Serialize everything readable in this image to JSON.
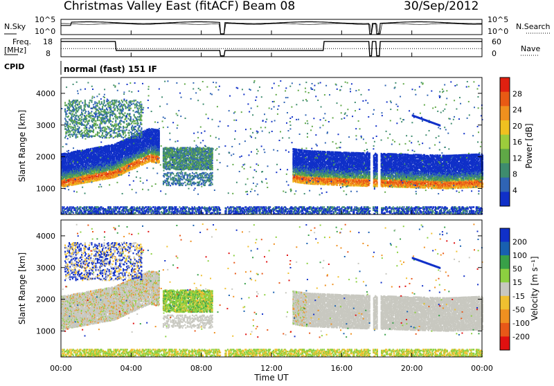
{
  "header": {
    "title": "Christmas Valley East (fitACF)",
    "beam": "Beam 08",
    "date": "30/Sep/2012"
  },
  "panels": {
    "nsky": {
      "label": "N.Sky",
      "top_tick": "10^5",
      "bottom_tick": "10^0",
      "right_label": "N.Search",
      "right_top_tick": "10^5",
      "right_bottom_tick": "10^0"
    },
    "freq": {
      "label_line1": "Freq.",
      "label_line2": "[MHz]",
      "top_tick": "18",
      "bottom_tick": "8",
      "right_label": "Nave",
      "right_top_tick": "60",
      "right_bottom_tick": "0"
    },
    "cpid": {
      "label": "CPID",
      "value": "normal (fast) 151 IF"
    }
  },
  "axes": {
    "ylabel": "Slant Range [km]",
    "xlabel": "Time UT",
    "x_ticks": [
      "00:00",
      "04:00",
      "08:00",
      "12:00",
      "16:00",
      "20:00",
      "00:00"
    ],
    "y_ticks": [
      "1000",
      "2000",
      "3000",
      "4000"
    ]
  },
  "colorbars": {
    "power": {
      "label": "Power [dB]",
      "ticks": [
        "4",
        "8",
        "12",
        "16",
        "20",
        "24",
        "28"
      ],
      "colors": [
        "#1030c8",
        "#2f64b4",
        "#3e8c6e",
        "#5fa846",
        "#9ccc3c",
        "#f0c020",
        "#f0901e",
        "#e85a14",
        "#e02010"
      ]
    },
    "velocity": {
      "label": "Velocity [m s⁻¹]",
      "ticks": [
        "200",
        "100",
        "50",
        "15",
        "-15",
        "-50",
        "-100",
        "-200"
      ],
      "colors": [
        "#1030c8",
        "#1860b0",
        "#38a048",
        "#8cd040",
        "#c8c8c0",
        "#f0c030",
        "#f09020",
        "#e85818",
        "#e01010"
      ]
    }
  },
  "chart_data": [
    {
      "type": "heatmap",
      "title": "Power",
      "xlabel": "Time UT",
      "ylabel": "Slant Range [km]",
      "xlim": [
        "00:00",
        "24:00"
      ],
      "ylim": [
        180,
        4500
      ],
      "colorbar_label": "Power [dB]",
      "color_range": [
        0,
        32
      ],
      "main_band_km": [
        {
          "t": 0,
          "range": 1200
        },
        {
          "t": 3,
          "range": 1500
        },
        {
          "t": 5,
          "range": 2000
        },
        {
          "t": 14,
          "range": 1300
        },
        {
          "t": 16,
          "range": 1250
        },
        {
          "t": 22,
          "range": 1150
        },
        {
          "t": 24,
          "range": 1200
        }
      ]
    },
    {
      "type": "heatmap",
      "title": "Velocity",
      "xlabel": "Time UT",
      "ylabel": "Slant Range [km]",
      "xlim": [
        "00:00",
        "24:00"
      ],
      "ylim": [
        180,
        4500
      ],
      "colorbar_label": "Velocity [m s⁻¹]",
      "color_range": [
        -200,
        200
      ]
    }
  ]
}
